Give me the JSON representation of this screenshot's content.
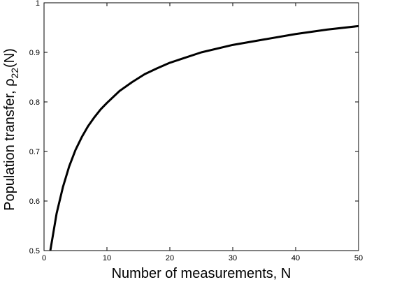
{
  "chart_data": {
    "type": "line",
    "title": "",
    "xlabel": "Number of measurements, N",
    "ylabel_main": "Population transfer, ρ",
    "ylabel_sub": "22",
    "ylabel_tail": "(N)",
    "xlim": [
      0,
      50
    ],
    "ylim": [
      0.5,
      1.0
    ],
    "xticks": [
      "0",
      "10",
      "20",
      "30",
      "40",
      "50"
    ],
    "yticks": [
      "0.5",
      "0.6",
      "0.7",
      "0.8",
      "0.9",
      "1"
    ],
    "grid": false,
    "series": [
      {
        "x": [
          1,
          2,
          3,
          4,
          5,
          6,
          7,
          8,
          9,
          10,
          12,
          14,
          16,
          18,
          20,
          25,
          30,
          35,
          40,
          45,
          50
        ],
        "y": [
          0.5,
          0.575,
          0.628,
          0.67,
          0.703,
          0.729,
          0.751,
          0.769,
          0.785,
          0.798,
          0.822,
          0.84,
          0.856,
          0.868,
          0.879,
          0.9,
          0.915,
          0.926,
          0.937,
          0.946,
          0.953
        ],
        "color": "#000000"
      }
    ]
  }
}
